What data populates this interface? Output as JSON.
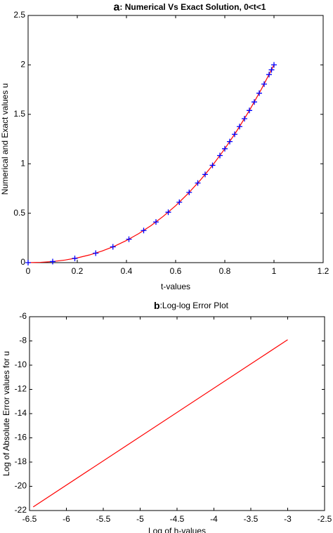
{
  "chart_data": [
    {
      "type": "line",
      "title_letter": "a",
      "title": ": Numerical Vs Exact Solution, 0<t<1",
      "x_label": "t-values",
      "y_label": "Numerical and Exact values u",
      "xlim": [
        0,
        1.2
      ],
      "ylim": [
        0,
        2.5
      ],
      "xticks": [
        0,
        0.2,
        0.4,
        0.6,
        0.8,
        1,
        1.2
      ],
      "yticks": [
        0,
        0.5,
        1,
        1.5,
        2,
        2.5
      ],
      "grid": false,
      "series": [
        {
          "mode": "line",
          "color": "#ff0000",
          "x": [
            0,
            0.05,
            0.1,
            0.15,
            0.2,
            0.25,
            0.3,
            0.35,
            0.4,
            0.45,
            0.5,
            0.55,
            0.6,
            0.65,
            0.7,
            0.75,
            0.8,
            0.85,
            0.9,
            0.95,
            1.0
          ],
          "values": [
            0,
            0.003,
            0.011,
            0.026,
            0.048,
            0.078,
            0.117,
            0.165,
            0.224,
            0.294,
            0.375,
            0.469,
            0.576,
            0.697,
            0.833,
            0.984,
            1.152,
            1.337,
            1.539,
            1.76,
            2
          ]
        },
        {
          "mode": "markers",
          "color": "#0000ff",
          "x": [
            0,
            0.1,
            0.19,
            0.275,
            0.345,
            0.41,
            0.47,
            0.52,
            0.57,
            0.615,
            0.655,
            0.69,
            0.72,
            0.75,
            0.78,
            0.8,
            0.82,
            0.84,
            0.86,
            0.88,
            0.9,
            0.92,
            0.94,
            0.96,
            0.98,
            0.99,
            1.0
          ],
          "values": [
            0,
            0.011,
            0.043,
            0.096,
            0.16,
            0.237,
            0.325,
            0.411,
            0.51,
            0.611,
            0.71,
            0.805,
            0.892,
            0.984,
            1.083,
            1.152,
            1.224,
            1.298,
            1.376,
            1.456,
            1.539,
            1.625,
            1.714,
            1.806,
            1.902,
            1.95,
            2
          ]
        }
      ]
    },
    {
      "type": "line",
      "title_letter": "b",
      "title": ":Log-log Error Plot",
      "x_label": "Log of h-values",
      "y_label": "Log of Absolute Error values for u",
      "xlim": [
        -6.5,
        -2.5
      ],
      "ylim": [
        -22,
        -6
      ],
      "xticks": [
        -6.5,
        -6,
        -5.5,
        -5,
        -4.5,
        -4,
        -3.5,
        -3,
        -2.5
      ],
      "yticks": [
        -22,
        -20,
        -18,
        -16,
        -14,
        -12,
        -10,
        -8,
        -6
      ],
      "grid": false,
      "series": [
        {
          "mode": "line",
          "color": "#ff0000",
          "x": [
            -6.45,
            -3.0
          ],
          "values": [
            -21.7,
            -7.9
          ]
        }
      ]
    }
  ]
}
